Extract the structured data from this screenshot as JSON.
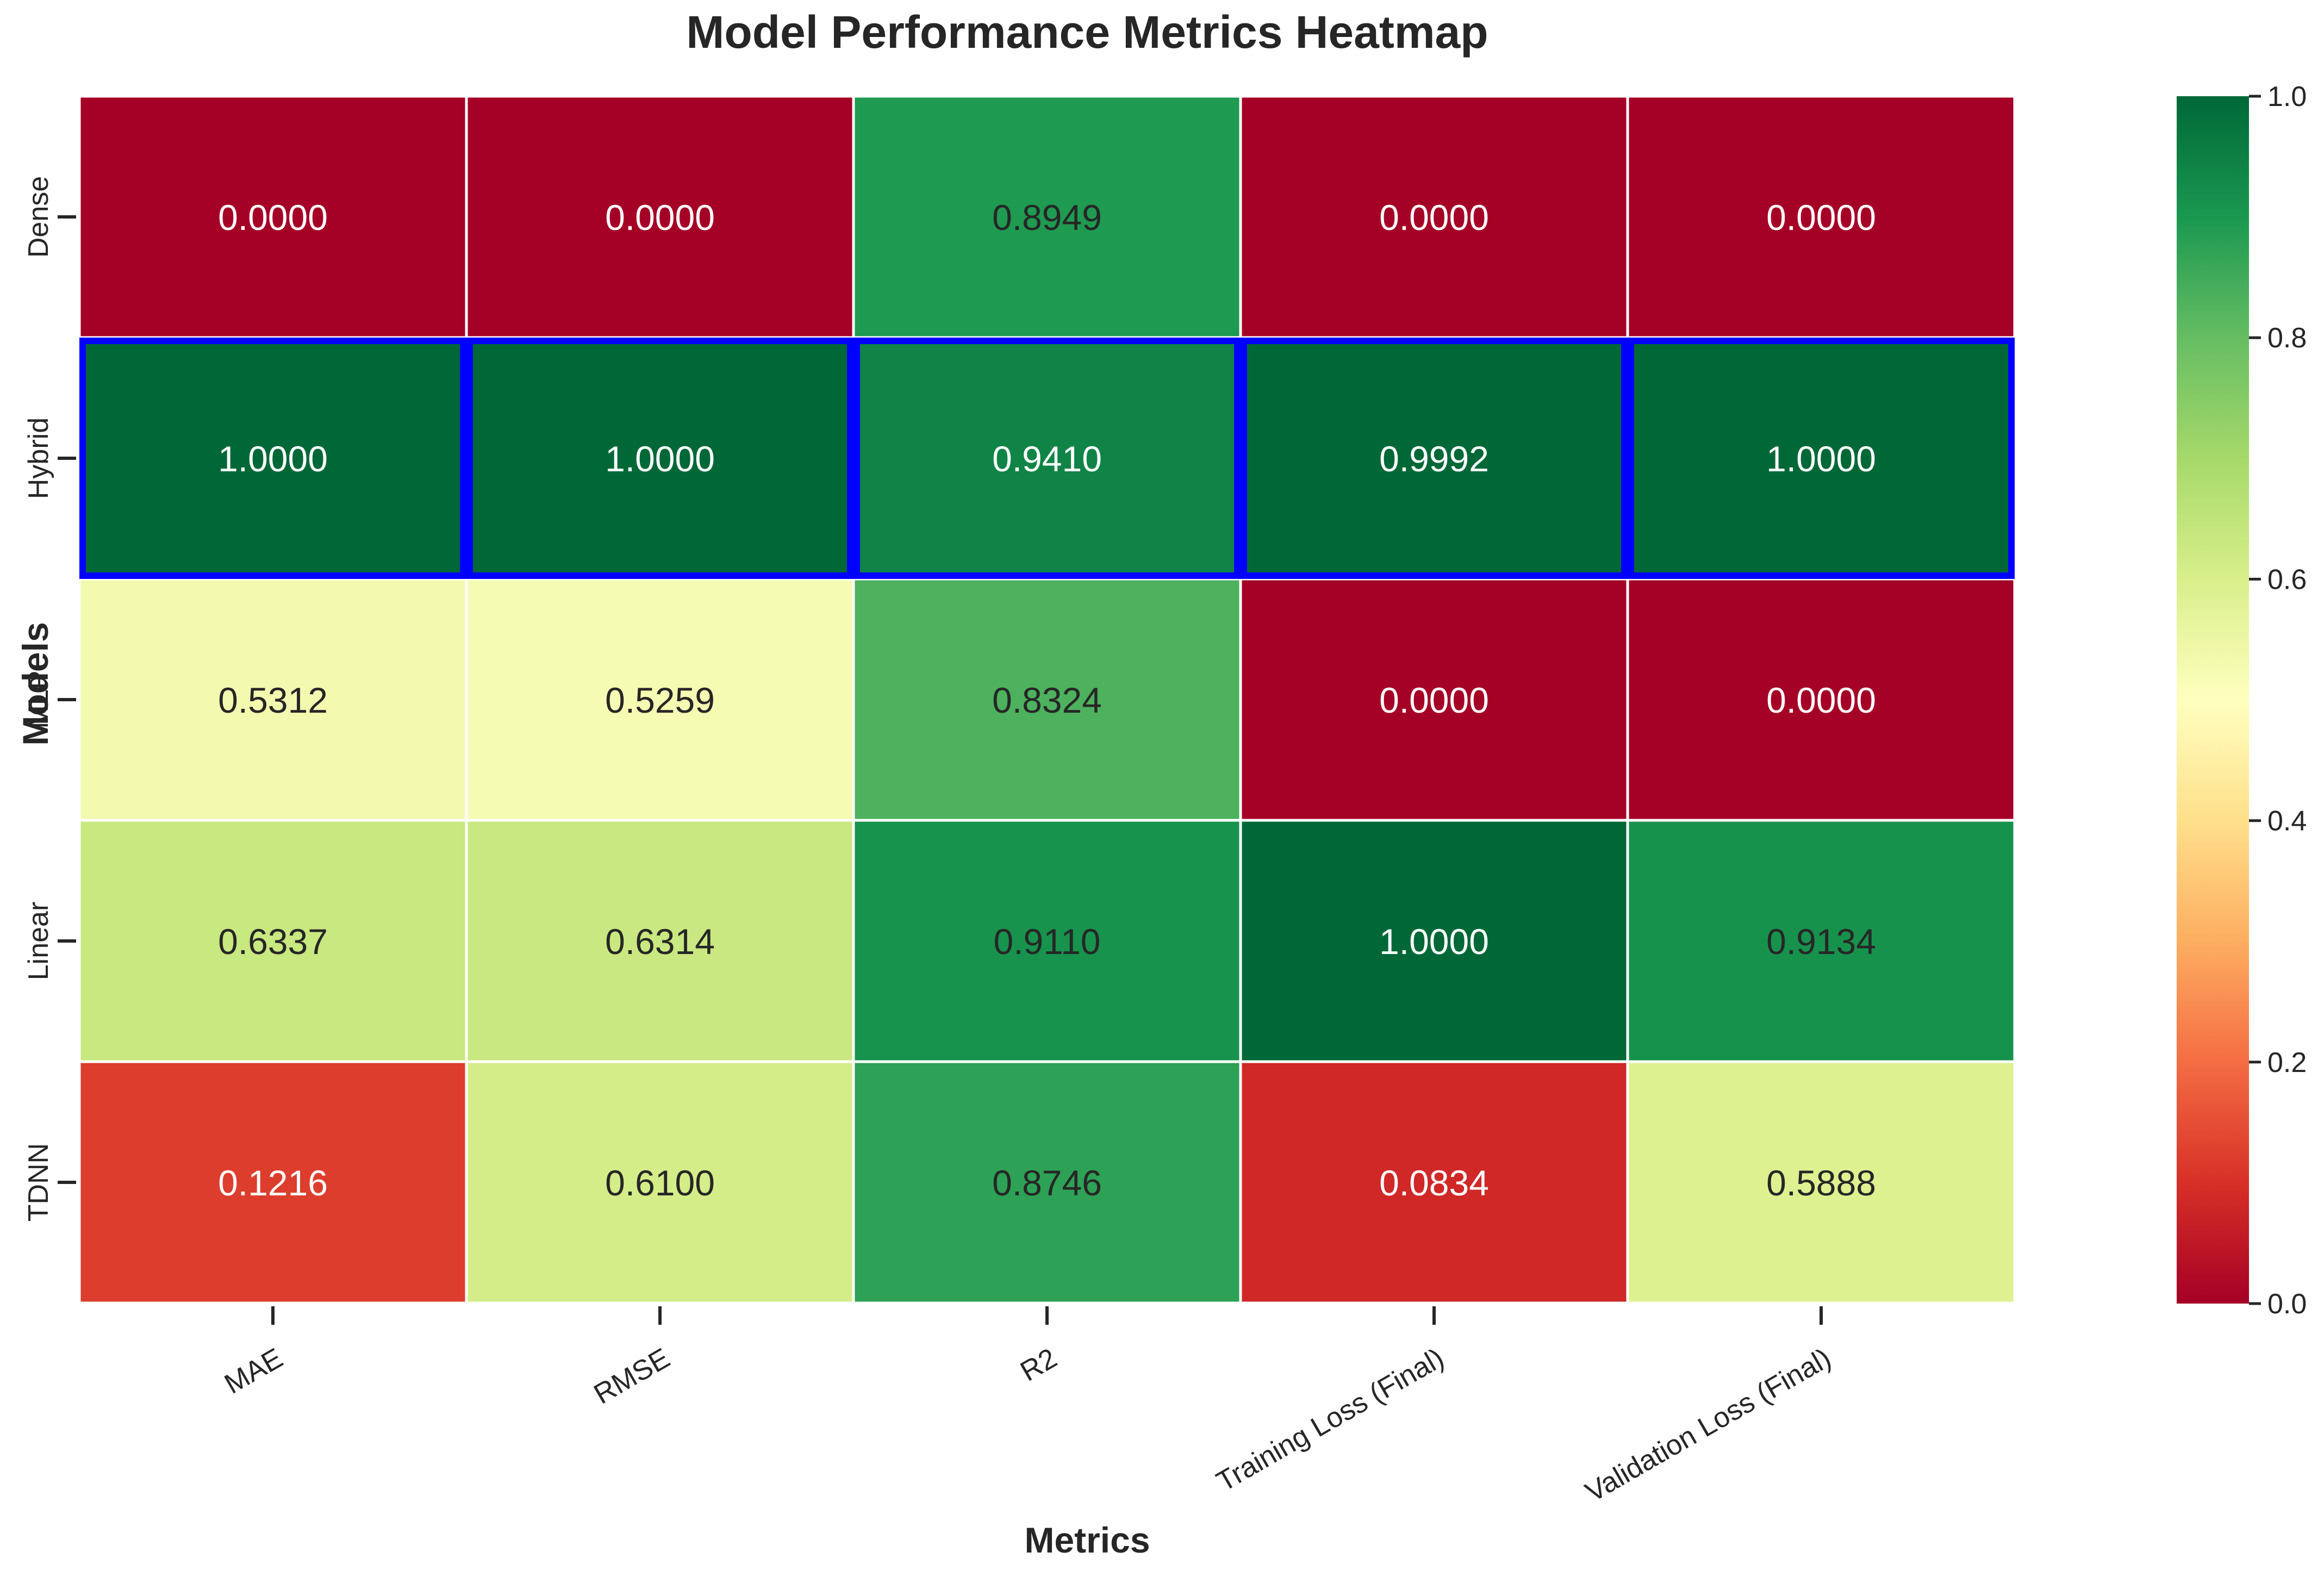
{
  "chart_data": {
    "type": "heatmap",
    "title": "Model Performance Metrics Heatmap",
    "xlabel": "Metrics",
    "ylabel": "Models",
    "x_categories": [
      "MAE",
      "RMSE",
      "R2",
      "Training Loss (Final)",
      "Validation Loss (Final)"
    ],
    "y_categories": [
      "Dense",
      "Hybrid",
      "MLP",
      "Linear",
      "TDNN"
    ],
    "values": [
      [
        0.0,
        0.0,
        0.8949,
        0.0,
        0.0
      ],
      [
        1.0,
        1.0,
        0.941,
        0.9992,
        1.0
      ],
      [
        0.5312,
        0.5259,
        0.8324,
        0.0,
        0.0
      ],
      [
        0.6337,
        0.6314,
        0.911,
        1.0,
        0.9134
      ],
      [
        0.1216,
        0.61,
        0.8746,
        0.0834,
        0.5888
      ]
    ],
    "value_format_decimals": 4,
    "colormap": "RdYlGn",
    "colorbar": {
      "vmin": 0.0,
      "vmax": 1.0,
      "ticks": [
        "0.0",
        "0.2",
        "0.4",
        "0.6",
        "0.8",
        "1.0"
      ]
    },
    "highlighted_row": "Hybrid",
    "highlight_color": "#0000ff",
    "grid": false,
    "legend": "colorbar-right"
  }
}
